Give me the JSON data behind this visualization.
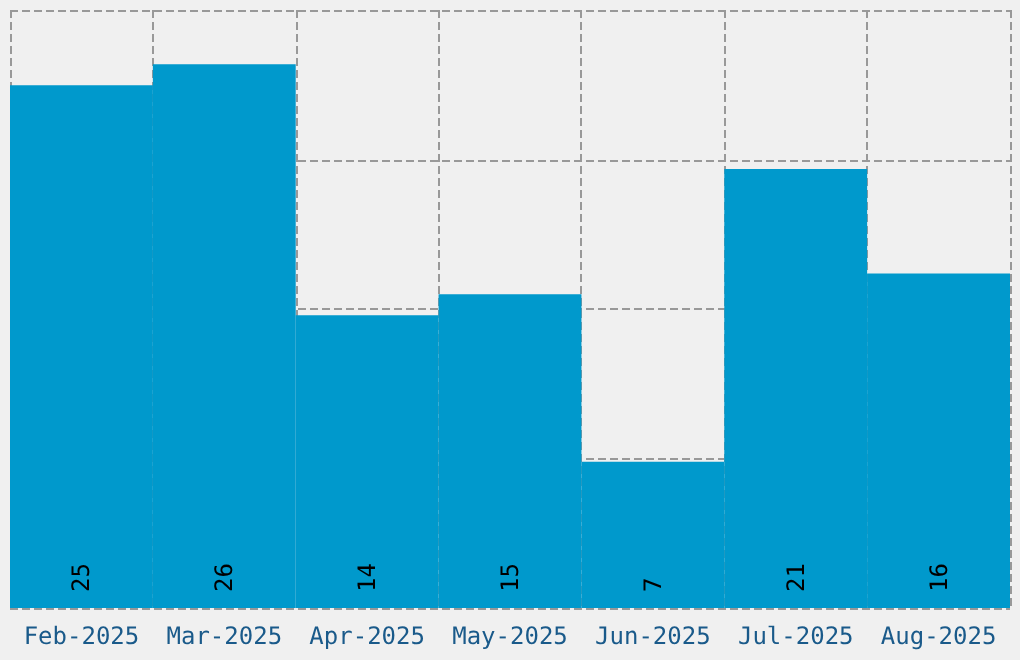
{
  "chart_data": {
    "type": "bar",
    "categories": [
      "Feb-2025",
      "Mar-2025",
      "Apr-2025",
      "May-2025",
      "Jun-2025",
      "Jul-2025",
      "Aug-2025"
    ],
    "values": [
      25,
      26,
      14,
      15,
      7,
      21,
      16
    ],
    "color": "#0099cc",
    "data_labels": true,
    "ylim": [
      0,
      28.6
    ],
    "yticks": [
      {
        "value": 0,
        "label": null
      },
      {
        "value": 7.15,
        "label": null
      },
      {
        "value": 14.3,
        "label": null
      },
      {
        "value": 21.45,
        "label": null
      },
      {
        "value": 28.6,
        "label": null
      }
    ],
    "grid": true,
    "tick_labels": "x"
  }
}
